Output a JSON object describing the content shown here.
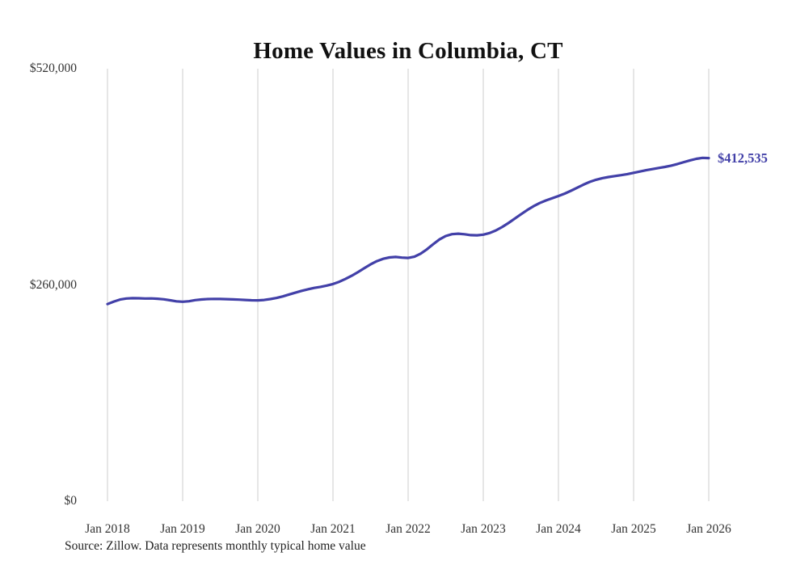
{
  "title": "Home Values in Columbia, CT",
  "source_note": "Source: Zillow. Data represents monthly typical home value",
  "end_label": "$412,535",
  "colors": {
    "line": "#4240a8",
    "grid": "#cccccc",
    "tick_text": "#333333",
    "title_text": "#111111"
  },
  "y_axis": {
    "ticks": [
      {
        "label": "$0",
        "value": 0
      },
      {
        "label": "$260,000",
        "value": 260000
      },
      {
        "label": "$520,000",
        "value": 520000
      }
    ]
  },
  "x_axis": {
    "ticks": [
      {
        "label": "Jan 2018",
        "month_index": 0
      },
      {
        "label": "Jan 2019",
        "month_index": 12
      },
      {
        "label": "Jan 2020",
        "month_index": 24
      },
      {
        "label": "Jan 2021",
        "month_index": 36
      },
      {
        "label": "Jan 2022",
        "month_index": 48
      },
      {
        "label": "Jan 2023",
        "month_index": 60
      },
      {
        "label": "Jan 2024",
        "month_index": 72
      },
      {
        "label": "Jan 2025",
        "month_index": 84
      },
      {
        "label": "Jan 2026",
        "month_index": 96
      }
    ]
  },
  "chart_data": {
    "type": "line",
    "title": "Home Values in Columbia, CT",
    "series_name": "Monthly typical home value",
    "ylim": [
      0,
      520000
    ],
    "grid": "vertical-only",
    "legend": "none",
    "final_value": 412535,
    "x": [
      "2018-01",
      "2018-02",
      "2018-03",
      "2018-04",
      "2018-05",
      "2018-06",
      "2018-07",
      "2018-08",
      "2018-09",
      "2018-10",
      "2018-11",
      "2018-12",
      "2019-01",
      "2019-02",
      "2019-03",
      "2019-04",
      "2019-05",
      "2019-06",
      "2019-07",
      "2019-08",
      "2019-09",
      "2019-10",
      "2019-11",
      "2019-12",
      "2020-01",
      "2020-02",
      "2020-03",
      "2020-04",
      "2020-05",
      "2020-06",
      "2020-07",
      "2020-08",
      "2020-09",
      "2020-10",
      "2020-11",
      "2020-12",
      "2021-01",
      "2021-02",
      "2021-03",
      "2021-04",
      "2021-05",
      "2021-06",
      "2021-07",
      "2021-08",
      "2021-09",
      "2021-10",
      "2021-11",
      "2021-12",
      "2022-01",
      "2022-02",
      "2022-03",
      "2022-04",
      "2022-05",
      "2022-06",
      "2022-07",
      "2022-08",
      "2022-09",
      "2022-10",
      "2022-11",
      "2022-12",
      "2023-01",
      "2023-02",
      "2023-03",
      "2023-04",
      "2023-05",
      "2023-06",
      "2023-07",
      "2023-08",
      "2023-09",
      "2023-10",
      "2023-11",
      "2023-12",
      "2024-01",
      "2024-02",
      "2024-03",
      "2024-04",
      "2024-05",
      "2024-06",
      "2024-07",
      "2024-08",
      "2024-09",
      "2024-10",
      "2024-11",
      "2024-12",
      "2025-01",
      "2025-02",
      "2025-03",
      "2025-04",
      "2025-05",
      "2025-06",
      "2025-07",
      "2025-08",
      "2025-09",
      "2025-10",
      "2025-11",
      "2025-12",
      "2026-01"
    ],
    "values": [
      237000,
      240000,
      242400,
      243700,
      244100,
      244000,
      243700,
      243800,
      243400,
      242700,
      241500,
      240300,
      239800,
      240400,
      241700,
      242500,
      243000,
      243200,
      243100,
      242900,
      242600,
      242300,
      241900,
      241500,
      241400,
      241900,
      243000,
      244400,
      246200,
      248500,
      250700,
      252900,
      254800,
      256400,
      257700,
      259200,
      261100,
      263800,
      267200,
      271100,
      275500,
      280100,
      284700,
      288600,
      291400,
      293000,
      293600,
      292900,
      292500,
      293900,
      297600,
      302900,
      309000,
      314700,
      318800,
      321000,
      321600,
      320900,
      319900,
      319700,
      320500,
      322400,
      325500,
      329600,
      334400,
      339600,
      344900,
      350000,
      354600,
      358500,
      361600,
      364300,
      366900,
      369800,
      373200,
      376900,
      380600,
      383900,
      386500,
      388400,
      389800,
      390900,
      392000,
      393300,
      394800,
      396400,
      397900,
      399300,
      400600,
      401900,
      403500,
      405400,
      407600,
      409800,
      411600,
      412800,
      412535
    ]
  }
}
